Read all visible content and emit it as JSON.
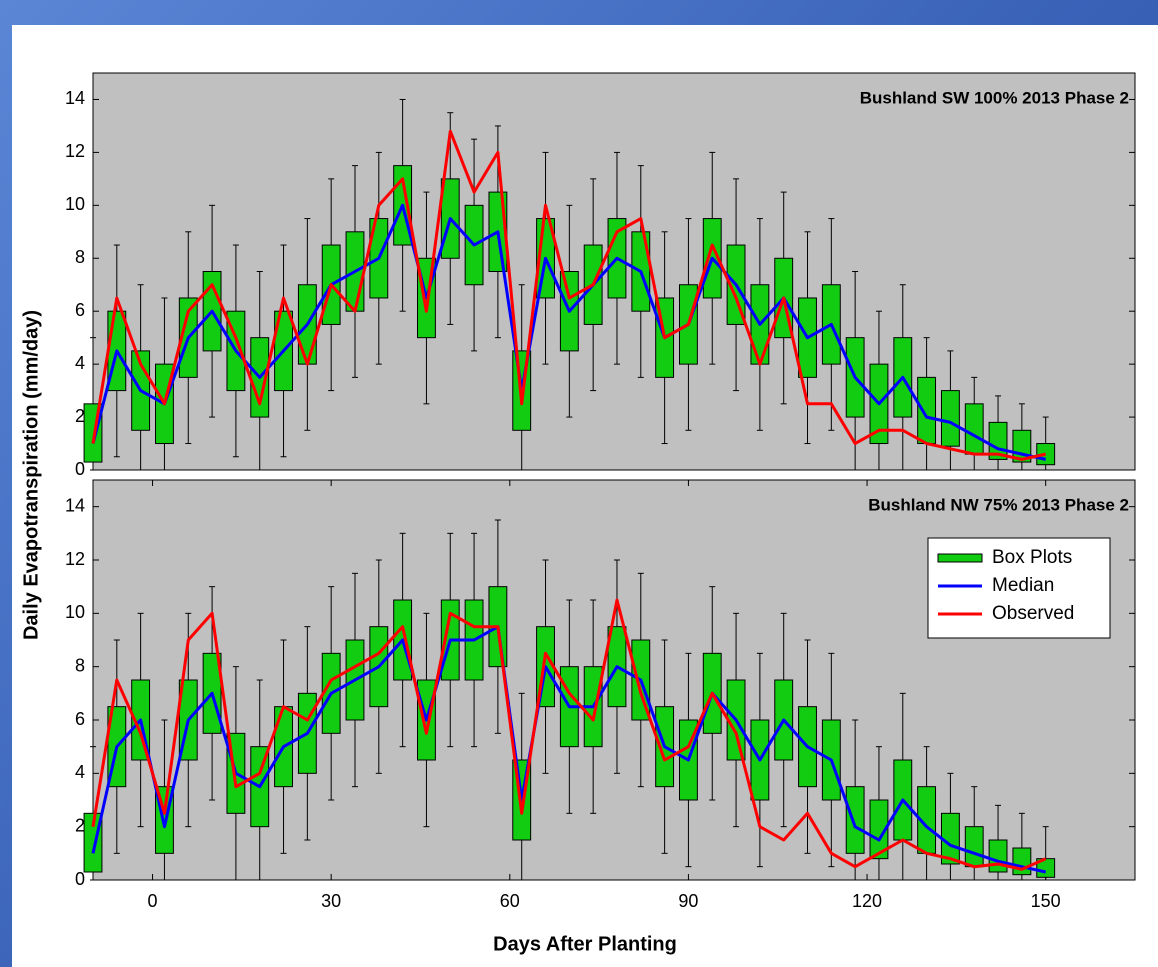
{
  "chart_data": [
    {
      "type": "box",
      "annotation": "Bushland SW 100% 2013 Phase 2",
      "ylabel": "Daily Evapotranspiration (mm/day)",
      "x": [
        -10,
        -6,
        -2,
        2,
        6,
        10,
        14,
        18,
        22,
        26,
        30,
        34,
        38,
        42,
        46,
        50,
        54,
        58,
        62,
        66,
        70,
        74,
        78,
        82,
        86,
        90,
        94,
        98,
        102,
        106,
        110,
        114,
        118,
        122,
        126,
        130,
        134,
        138,
        142,
        146,
        150
      ],
      "boxes": {
        "name": "Box Plots",
        "color": "#11cc11",
        "whisker_low": [
          0,
          0.5,
          0,
          0,
          1,
          2,
          0.5,
          0,
          0.5,
          1.5,
          3,
          3.5,
          4,
          6,
          2.5,
          5.5,
          4.5,
          5,
          0,
          4,
          2,
          3,
          4,
          3.5,
          1,
          1.5,
          4,
          3,
          1.5,
          2.5,
          1,
          1.5,
          0,
          0,
          0,
          0,
          0,
          0,
          0,
          0,
          0
        ],
        "q1": [
          0.3,
          3,
          1.5,
          1,
          3.5,
          4.5,
          3,
          2,
          3,
          4,
          5.5,
          6,
          6.5,
          8.5,
          5,
          8,
          7,
          7.5,
          1.5,
          6.5,
          4.5,
          5.5,
          6.5,
          6,
          3.5,
          4,
          6.5,
          5.5,
          4,
          5,
          3.5,
          4,
          2,
          1,
          2,
          1,
          0.9,
          0.6,
          0.4,
          0.3,
          0.2
        ],
        "q3": [
          2.5,
          6,
          4.5,
          4,
          6.5,
          7.5,
          6,
          5,
          6,
          7,
          8.5,
          9,
          9.5,
          11.5,
          8,
          11,
          10,
          10.5,
          4.5,
          9.5,
          7.5,
          8.5,
          9.5,
          9,
          6.5,
          7,
          9.5,
          8.5,
          7,
          8,
          6.5,
          7,
          5,
          4,
          5,
          3.5,
          3,
          2.5,
          1.8,
          1.5,
          1
        ],
        "whisker_high": [
          5,
          8.5,
          7,
          6.5,
          9,
          10,
          8.5,
          7.5,
          8.5,
          9.5,
          11,
          11.5,
          12,
          14,
          10.5,
          13.5,
          12.5,
          13,
          7,
          12,
          10,
          11,
          12,
          11.5,
          9,
          9.5,
          12,
          11,
          9.5,
          10.5,
          9,
          9.5,
          7.5,
          6,
          7,
          5,
          4.5,
          3.5,
          2.8,
          2.5,
          2
        ]
      },
      "series": [
        {
          "name": "Median",
          "color": "#0000ff",
          "values": [
            1,
            4.5,
            3,
            2.5,
            5,
            6,
            4.5,
            3.5,
            4.5,
            5.5,
            7,
            7.5,
            8,
            10,
            6.5,
            9.5,
            8.5,
            9,
            3,
            8,
            6,
            7,
            8,
            7.5,
            5,
            5.5,
            8,
            7,
            5.5,
            6.5,
            5,
            5.5,
            3.5,
            2.5,
            3.5,
            2,
            1.8,
            1.3,
            0.8,
            0.6,
            0.4
          ]
        },
        {
          "name": "Observed",
          "color": "#ff0000",
          "values": [
            1,
            6.5,
            4,
            2.5,
            6,
            7,
            5,
            2.5,
            6.5,
            4,
            7,
            6,
            10,
            11,
            6,
            12.8,
            10.5,
            12,
            2.5,
            10,
            6.5,
            7,
            9,
            9.5,
            5,
            5.5,
            8.5,
            6.5,
            4,
            6.5,
            2.5,
            2.5,
            1,
            1.5,
            1.5,
            1,
            0.8,
            0.6,
            0.6,
            0.4,
            0.6
          ]
        }
      ],
      "xlim": [
        -10,
        165
      ],
      "ylim": [
        0,
        15
      ],
      "yticks": [
        0,
        2,
        4,
        6,
        8,
        10,
        12,
        14
      ]
    },
    {
      "type": "box",
      "annotation": "Bushland NW 75% 2013 Phase 2",
      "xlabel": "Days After Planting",
      "legend": "upper right",
      "x": [
        -10,
        -6,
        -2,
        2,
        6,
        10,
        14,
        18,
        22,
        26,
        30,
        34,
        38,
        42,
        46,
        50,
        54,
        58,
        62,
        66,
        70,
        74,
        78,
        82,
        86,
        90,
        94,
        98,
        102,
        106,
        110,
        114,
        118,
        122,
        126,
        130,
        134,
        138,
        142,
        146,
        150
      ],
      "boxes": {
        "name": "Box Plots",
        "color": "#11cc11",
        "whisker_low": [
          0,
          1,
          2,
          0,
          2,
          3,
          0,
          0,
          1,
          1.5,
          3,
          3.5,
          4,
          5,
          2,
          5,
          5,
          5.5,
          0,
          4,
          2.5,
          2.5,
          4,
          3.5,
          1,
          0.5,
          3,
          2,
          0.5,
          2,
          1,
          0.5,
          0,
          0,
          0,
          0,
          0,
          0,
          0,
          0,
          0
        ],
        "q1": [
          0.3,
          3.5,
          4.5,
          1,
          4.5,
          5.5,
          2.5,
          2,
          3.5,
          4,
          5.5,
          6,
          6.5,
          7.5,
          4.5,
          7.5,
          7.5,
          8,
          1.5,
          6.5,
          5,
          5,
          6.5,
          6,
          3.5,
          3,
          5.5,
          4.5,
          3,
          4.5,
          3.5,
          3,
          1,
          0.8,
          1.5,
          1,
          0.6,
          0.5,
          0.3,
          0.2,
          0.1
        ],
        "q3": [
          2.5,
          6.5,
          7.5,
          3.5,
          7.5,
          8.5,
          5.5,
          5,
          6.5,
          7,
          8.5,
          9,
          9.5,
          10.5,
          7.5,
          10.5,
          10.5,
          11,
          4.5,
          9.5,
          8,
          8,
          9.5,
          9,
          6.5,
          6,
          8.5,
          7.5,
          6,
          7.5,
          6.5,
          6,
          3.5,
          3,
          4.5,
          3.5,
          2.5,
          2,
          1.5,
          1.2,
          0.8
        ],
        "whisker_high": [
          5,
          9,
          10,
          6,
          10,
          11,
          8,
          7.5,
          9,
          9.5,
          11,
          11.5,
          12,
          13,
          10,
          13,
          13,
          13.5,
          7,
          12,
          10.5,
          10.5,
          12,
          11.5,
          9,
          8.5,
          11,
          10,
          8.5,
          10,
          9,
          8.5,
          6,
          5,
          7,
          5,
          4,
          3.5,
          2.8,
          2.5,
          2
        ]
      },
      "series": [
        {
          "name": "Median",
          "color": "#0000ff",
          "values": [
            1,
            5,
            6,
            2,
            6,
            7,
            4,
            3.5,
            5,
            5.5,
            7,
            7.5,
            8,
            9,
            6,
            9,
            9,
            9.5,
            3,
            8,
            6.5,
            6.5,
            8,
            7.5,
            5,
            4.5,
            7,
            6,
            4.5,
            6,
            5,
            4.5,
            2,
            1.5,
            3,
            2,
            1.3,
            1,
            0.7,
            0.5,
            0.3
          ]
        },
        {
          "name": "Observed",
          "color": "#ff0000",
          "values": [
            2,
            7.5,
            5.5,
            2.5,
            9,
            10,
            3.5,
            4,
            6.5,
            6,
            7.5,
            8,
            8.5,
            9.5,
            5.5,
            10,
            9.5,
            9.5,
            2.5,
            8.5,
            7,
            6,
            10.5,
            7,
            4.5,
            5,
            7,
            5.5,
            2,
            1.5,
            2.5,
            1,
            0.5,
            1,
            1.5,
            1,
            0.8,
            0.5,
            0.6,
            0.4,
            0.8
          ]
        }
      ],
      "xlim": [
        -10,
        165
      ],
      "ylim": [
        0,
        15
      ],
      "yticks": [
        0,
        2,
        4,
        6,
        8,
        10,
        12,
        14
      ],
      "xticks": [
        0,
        30,
        60,
        90,
        120,
        150
      ]
    }
  ]
}
